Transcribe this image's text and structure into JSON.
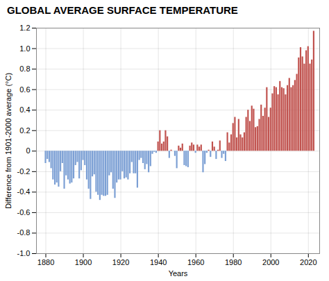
{
  "chart_data": {
    "type": "bar",
    "title": "GLOBAL AVERAGE SURFACE TEMPERATURE",
    "xlabel": "Years",
    "ylabel": "Difference from 1901-2000 average (°C)",
    "x": [
      1880,
      1881,
      1882,
      1883,
      1884,
      1885,
      1886,
      1887,
      1888,
      1889,
      1890,
      1891,
      1892,
      1893,
      1894,
      1895,
      1896,
      1897,
      1898,
      1899,
      1900,
      1901,
      1902,
      1903,
      1904,
      1905,
      1906,
      1907,
      1908,
      1909,
      1910,
      1911,
      1912,
      1913,
      1914,
      1915,
      1916,
      1917,
      1918,
      1919,
      1920,
      1921,
      1922,
      1923,
      1924,
      1925,
      1926,
      1927,
      1928,
      1929,
      1930,
      1931,
      1932,
      1933,
      1934,
      1935,
      1936,
      1937,
      1938,
      1939,
      1940,
      1941,
      1942,
      1943,
      1944,
      1945,
      1946,
      1947,
      1948,
      1949,
      1950,
      1951,
      1952,
      1953,
      1954,
      1955,
      1956,
      1957,
      1958,
      1959,
      1960,
      1961,
      1962,
      1963,
      1964,
      1965,
      1966,
      1967,
      1968,
      1969,
      1970,
      1971,
      1972,
      1973,
      1974,
      1975,
      1976,
      1977,
      1978,
      1979,
      1980,
      1981,
      1982,
      1983,
      1984,
      1985,
      1986,
      1987,
      1988,
      1989,
      1990,
      1991,
      1992,
      1993,
      1994,
      1995,
      1996,
      1997,
      1998,
      1999,
      2000,
      2001,
      2002,
      2003,
      2004,
      2005,
      2006,
      2007,
      2008,
      2009,
      2010,
      2011,
      2012,
      2013,
      2014,
      2015,
      2016,
      2017,
      2018,
      2019,
      2020,
      2021,
      2022,
      2023
    ],
    "values": [
      -0.12,
      -0.08,
      -0.11,
      -0.17,
      -0.28,
      -0.33,
      -0.31,
      -0.35,
      -0.2,
      -0.12,
      -0.37,
      -0.24,
      -0.28,
      -0.32,
      -0.31,
      -0.27,
      -0.14,
      -0.11,
      -0.27,
      -0.19,
      -0.09,
      -0.14,
      -0.28,
      -0.37,
      -0.47,
      -0.25,
      -0.23,
      -0.4,
      -0.43,
      -0.48,
      -0.43,
      -0.44,
      -0.44,
      -0.43,
      -0.24,
      -0.21,
      -0.37,
      -0.46,
      -0.31,
      -0.28,
      -0.28,
      -0.2,
      -0.27,
      -0.26,
      -0.28,
      -0.22,
      -0.11,
      -0.22,
      -0.22,
      -0.36,
      -0.09,
      -0.07,
      -0.12,
      -0.18,
      -0.13,
      -0.21,
      -0.15,
      -0.03,
      -0.01,
      -0.02,
      0.09,
      0.2,
      0.07,
      0.09,
      0.2,
      0.14,
      -0.07,
      0.01,
      0.0,
      -0.05,
      -0.17,
      0.05,
      0.03,
      0.07,
      -0.14,
      -0.15,
      -0.16,
      0.05,
      0.08,
      0.06,
      -0.02,
      0.06,
      0.04,
      0.06,
      -0.21,
      -0.13,
      -0.02,
      0.01,
      -0.06,
      0.09,
      0.04,
      -0.08,
      0.01,
      0.1,
      -0.07,
      -0.03,
      -0.1,
      0.18,
      0.08,
      0.16,
      0.27,
      0.33,
      0.13,
      0.31,
      0.16,
      0.13,
      0.18,
      0.33,
      0.4,
      0.29,
      0.44,
      0.41,
      0.23,
      0.24,
      0.31,
      0.45,
      0.34,
      0.42,
      0.62,
      0.33,
      0.42,
      0.56,
      0.63,
      0.62,
      0.55,
      0.68,
      0.62,
      0.61,
      0.55,
      0.64,
      0.71,
      0.62,
      0.64,
      0.69,
      0.75,
      0.91,
      1.01,
      0.92,
      0.85,
      0.98,
      1.02,
      0.85,
      0.89,
      1.17
    ],
    "colors": [
      "#7b9fd4",
      "#7b9fd4",
      "#7b9fd4",
      "#7b9fd4",
      "#7b9fd4",
      "#7b9fd4",
      "#7b9fd4",
      "#7b9fd4",
      "#7b9fd4",
      "#7b9fd4",
      "#7b9fd4",
      "#7b9fd4",
      "#7b9fd4",
      "#7b9fd4",
      "#7b9fd4",
      "#7b9fd4",
      "#7b9fd4",
      "#7b9fd4",
      "#7b9fd4",
      "#7b9fd4",
      "#7b9fd4",
      "#7b9fd4",
      "#7b9fd4",
      "#7b9fd4",
      "#7b9fd4",
      "#7b9fd4",
      "#7b9fd4",
      "#7b9fd4",
      "#7b9fd4",
      "#7b9fd4",
      "#7b9fd4",
      "#7b9fd4",
      "#7b9fd4",
      "#7b9fd4",
      "#7b9fd4",
      "#7b9fd4",
      "#7b9fd4",
      "#7b9fd4",
      "#7b9fd4",
      "#7b9fd4",
      "#7b9fd4",
      "#7b9fd4",
      "#7b9fd4",
      "#7b9fd4",
      "#7b9fd4",
      "#7b9fd4",
      "#7b9fd4",
      "#7b9fd4",
      "#7b9fd4",
      "#7b9fd4",
      "#7b9fd4",
      "#7b9fd4",
      "#7b9fd4",
      "#7b9fd4",
      "#7b9fd4",
      "#7b9fd4",
      "#7b9fd4",
      "#7b9fd4",
      "#7b9fd4",
      "#7b9fd4",
      "#c0514d",
      "#c0514d",
      "#c0514d",
      "#c0514d",
      "#c0514d",
      "#c0514d",
      "#7b9fd4",
      "#c0514d",
      "#c0514d",
      "#7b9fd4",
      "#7b9fd4",
      "#c0514d",
      "#c0514d",
      "#c0514d",
      "#7b9fd4",
      "#7b9fd4",
      "#7b9fd4",
      "#c0514d",
      "#c0514d",
      "#c0514d",
      "#7b9fd4",
      "#c0514d",
      "#c0514d",
      "#c0514d",
      "#7b9fd4",
      "#7b9fd4",
      "#7b9fd4",
      "#c0514d",
      "#7b9fd4",
      "#c0514d",
      "#c0514d",
      "#7b9fd4",
      "#c0514d",
      "#c0514d",
      "#7b9fd4",
      "#7b9fd4",
      "#7b9fd4",
      "#c0514d",
      "#c0514d",
      "#c0514d",
      "#c0514d",
      "#c0514d",
      "#c0514d",
      "#c0514d",
      "#c0514d",
      "#c0514d",
      "#c0514d",
      "#c0514d",
      "#c0514d",
      "#c0514d",
      "#c0514d",
      "#c0514d",
      "#c0514d",
      "#c0514d",
      "#c0514d",
      "#c0514d",
      "#c0514d",
      "#c0514d",
      "#c0514d",
      "#c0514d",
      "#c0514d",
      "#c0514d",
      "#c0514d",
      "#c0514d",
      "#c0514d",
      "#c0514d",
      "#c0514d",
      "#c0514d",
      "#c0514d",
      "#c0514d",
      "#c0514d",
      "#c0514d",
      "#c0514d",
      "#c0514d",
      "#c0514d",
      "#c0514d",
      "#c0514d",
      "#c0514d",
      "#c0514d",
      "#c0514d",
      "#c0514d",
      "#c0514d",
      "#c0514d",
      "#c0514d"
    ],
    "xlim": [
      1875,
      2026
    ],
    "xticks": [
      1880,
      1900,
      1920,
      1940,
      1960,
      1980,
      2000,
      2020
    ],
    "ylim": [
      -1.0,
      1.2
    ],
    "yticks": [
      {
        "value": -1.0,
        "label": "-1.0"
      },
      -0.8,
      -0.6,
      -0.4,
      -0.2,
      0,
      0.2,
      0.4,
      0.6,
      0.8,
      {
        "value": 1.0,
        "label": "1.0"
      },
      1.2
    ],
    "grid": true
  }
}
